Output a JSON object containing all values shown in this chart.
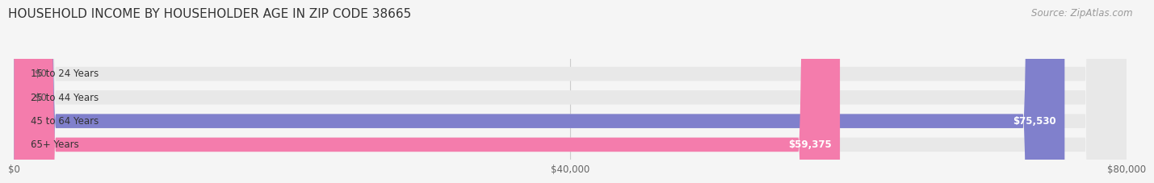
{
  "title": "HOUSEHOLD INCOME BY HOUSEHOLDER AGE IN ZIP CODE 38665",
  "source_text": "Source: ZipAtlas.com",
  "categories": [
    "15 to 24 Years",
    "25 to 44 Years",
    "45 to 64 Years",
    "65+ Years"
  ],
  "values": [
    0,
    0,
    75530,
    59375
  ],
  "bar_colors": [
    "#c9a0dc",
    "#7ecec4",
    "#8080cc",
    "#f47cac"
  ],
  "bar_labels": [
    "$0",
    "$0",
    "$75,530",
    "$59,375"
  ],
  "xlim": [
    0,
    80000
  ],
  "xticks": [
    0,
    40000,
    80000
  ],
  "xtick_labels": [
    "$0",
    "$40,000",
    "$80,000"
  ],
  "background_color": "#f5f5f5",
  "bar_bg_color": "#e8e8e8",
  "title_fontsize": 11,
  "source_fontsize": 8.5,
  "label_fontsize": 8.5,
  "tick_fontsize": 8.5
}
